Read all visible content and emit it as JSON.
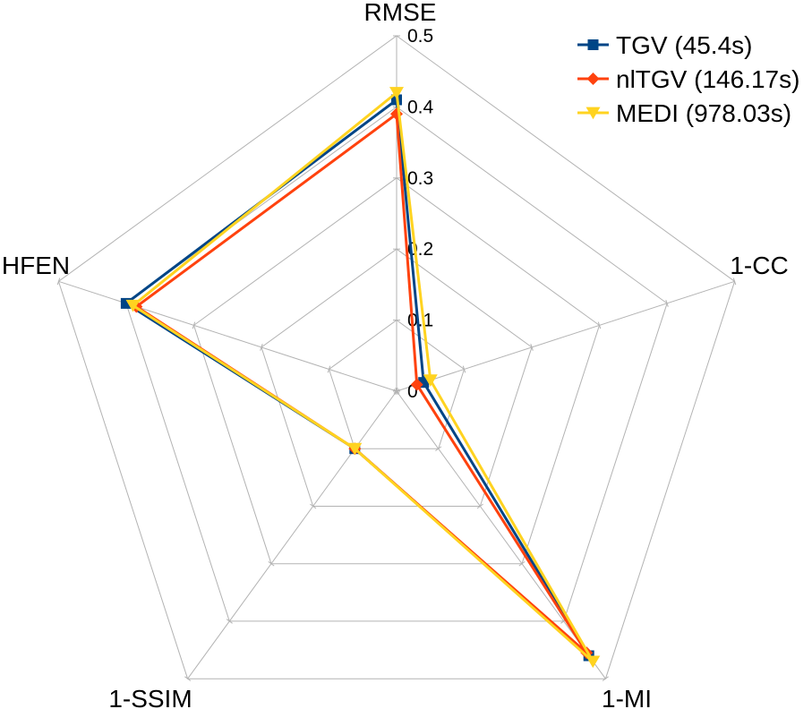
{
  "chart_data": {
    "type": "radar",
    "title": "",
    "axes": [
      "RMSE",
      "1-CC",
      "1-MI",
      "1-SSIM",
      "HFEN"
    ],
    "range": [
      0,
      0.5
    ],
    "ticks": [
      "0",
      "0.1",
      "0.2",
      "0.3",
      "0.4",
      "0.5"
    ],
    "tick_values": [
      0,
      0.1,
      0.2,
      0.3,
      0.4,
      0.5
    ],
    "grid": true,
    "legend_position": "top-right",
    "series": [
      {
        "name": "TGV (45.4s)",
        "color": "#004586",
        "marker": "square",
        "values": [
          0.41,
          0.04,
          0.46,
          0.1,
          0.4
        ]
      },
      {
        "name": "nlTGV (146.17s)",
        "color": "#ff420e",
        "marker": "diamond",
        "values": [
          0.39,
          0.03,
          0.455,
          0.1,
          0.385
        ]
      },
      {
        "name": "MEDI (978.03s)",
        "color": "#ffd320",
        "marker": "triangle-down",
        "values": [
          0.42,
          0.05,
          0.47,
          0.1,
          0.39
        ]
      }
    ]
  }
}
